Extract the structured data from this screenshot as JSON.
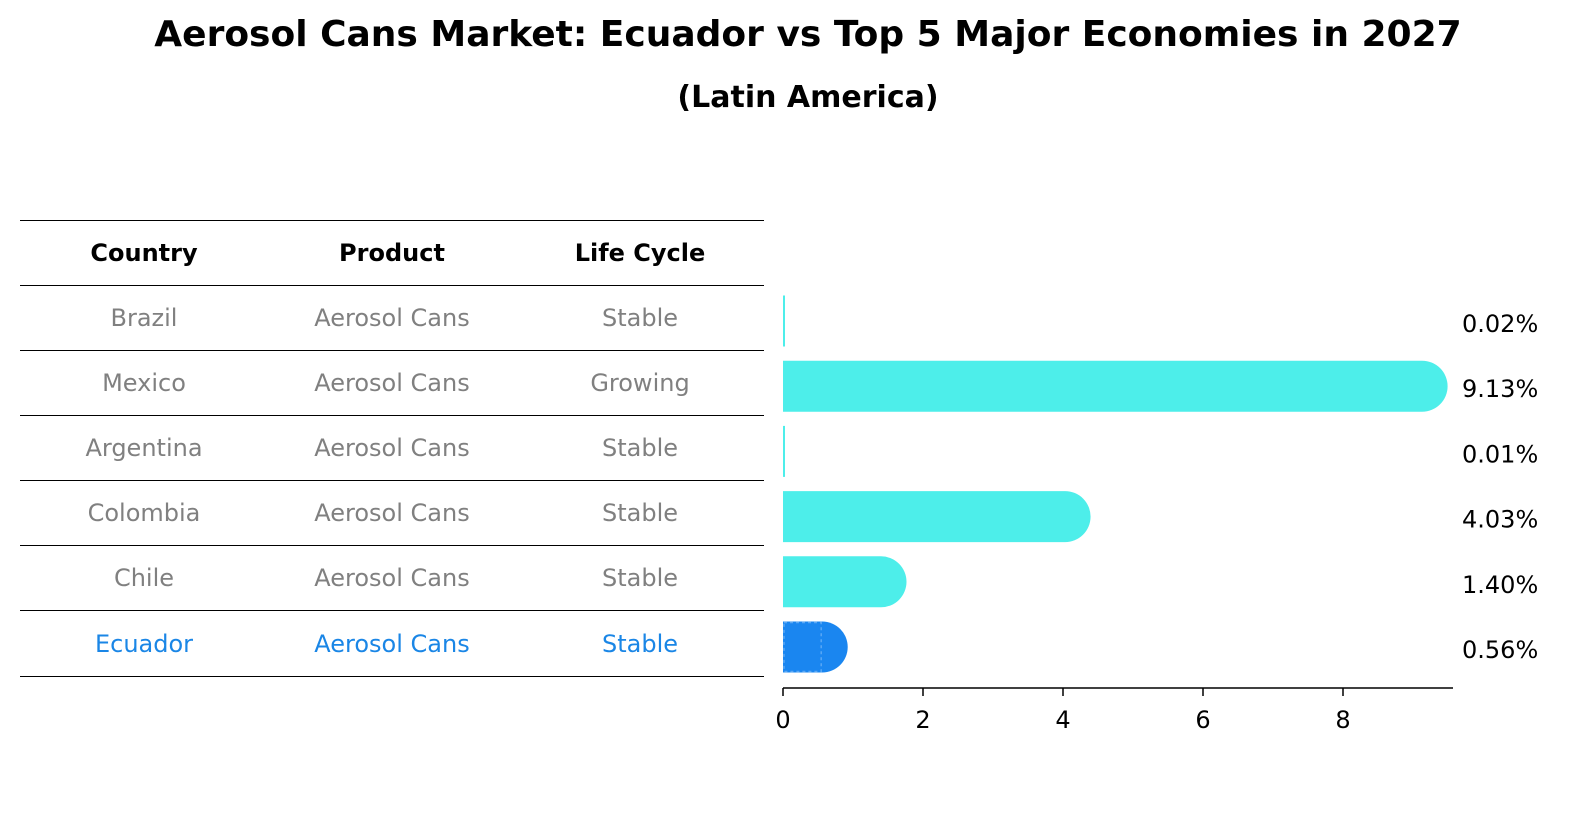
{
  "title": "Aerosol Cans Market: Ecuador vs Top 5 Major Economies in 2027",
  "subtitle": "(Latin America)",
  "table": {
    "headers": [
      "Country",
      "Product",
      "Life Cycle"
    ],
    "rows": [
      {
        "country": "Brazil",
        "product": "Aerosol Cans",
        "life_cycle": "Stable",
        "highlight": false
      },
      {
        "country": "Mexico",
        "product": "Aerosol Cans",
        "life_cycle": "Growing",
        "highlight": false
      },
      {
        "country": "Argentina",
        "product": "Aerosol Cans",
        "life_cycle": "Stable",
        "highlight": false
      },
      {
        "country": "Colombia",
        "product": "Aerosol Cans",
        "life_cycle": "Stable",
        "highlight": false
      },
      {
        "country": "Chile",
        "product": "Aerosol Cans",
        "life_cycle": "Stable",
        "highlight": false
      },
      {
        "country": "Ecuador",
        "product": "Aerosol Cans",
        "life_cycle": "Stable",
        "highlight": true
      }
    ]
  },
  "colors": {
    "bar": "#4deeea",
    "highlight_bar": "#1a86f0",
    "row_text": "#808080",
    "highlight_text": "#1a86e6"
  },
  "chart_data": {
    "type": "bar",
    "orientation": "horizontal",
    "categories": [
      "Brazil",
      "Mexico",
      "Argentina",
      "Colombia",
      "Chile",
      "Ecuador"
    ],
    "values": [
      0.02,
      9.13,
      0.01,
      4.03,
      1.4,
      0.56
    ],
    "value_labels": [
      "0.02%",
      "9.13%",
      "0.01%",
      "4.03%",
      "1.40%",
      "0.56%"
    ],
    "highlight": "Ecuador",
    "xlim": [
      0,
      9.6
    ],
    "xticks": [
      0,
      2,
      4,
      6,
      8
    ],
    "xtick_labels": [
      "0",
      "2",
      "4",
      "6",
      "8"
    ],
    "grid": false
  }
}
